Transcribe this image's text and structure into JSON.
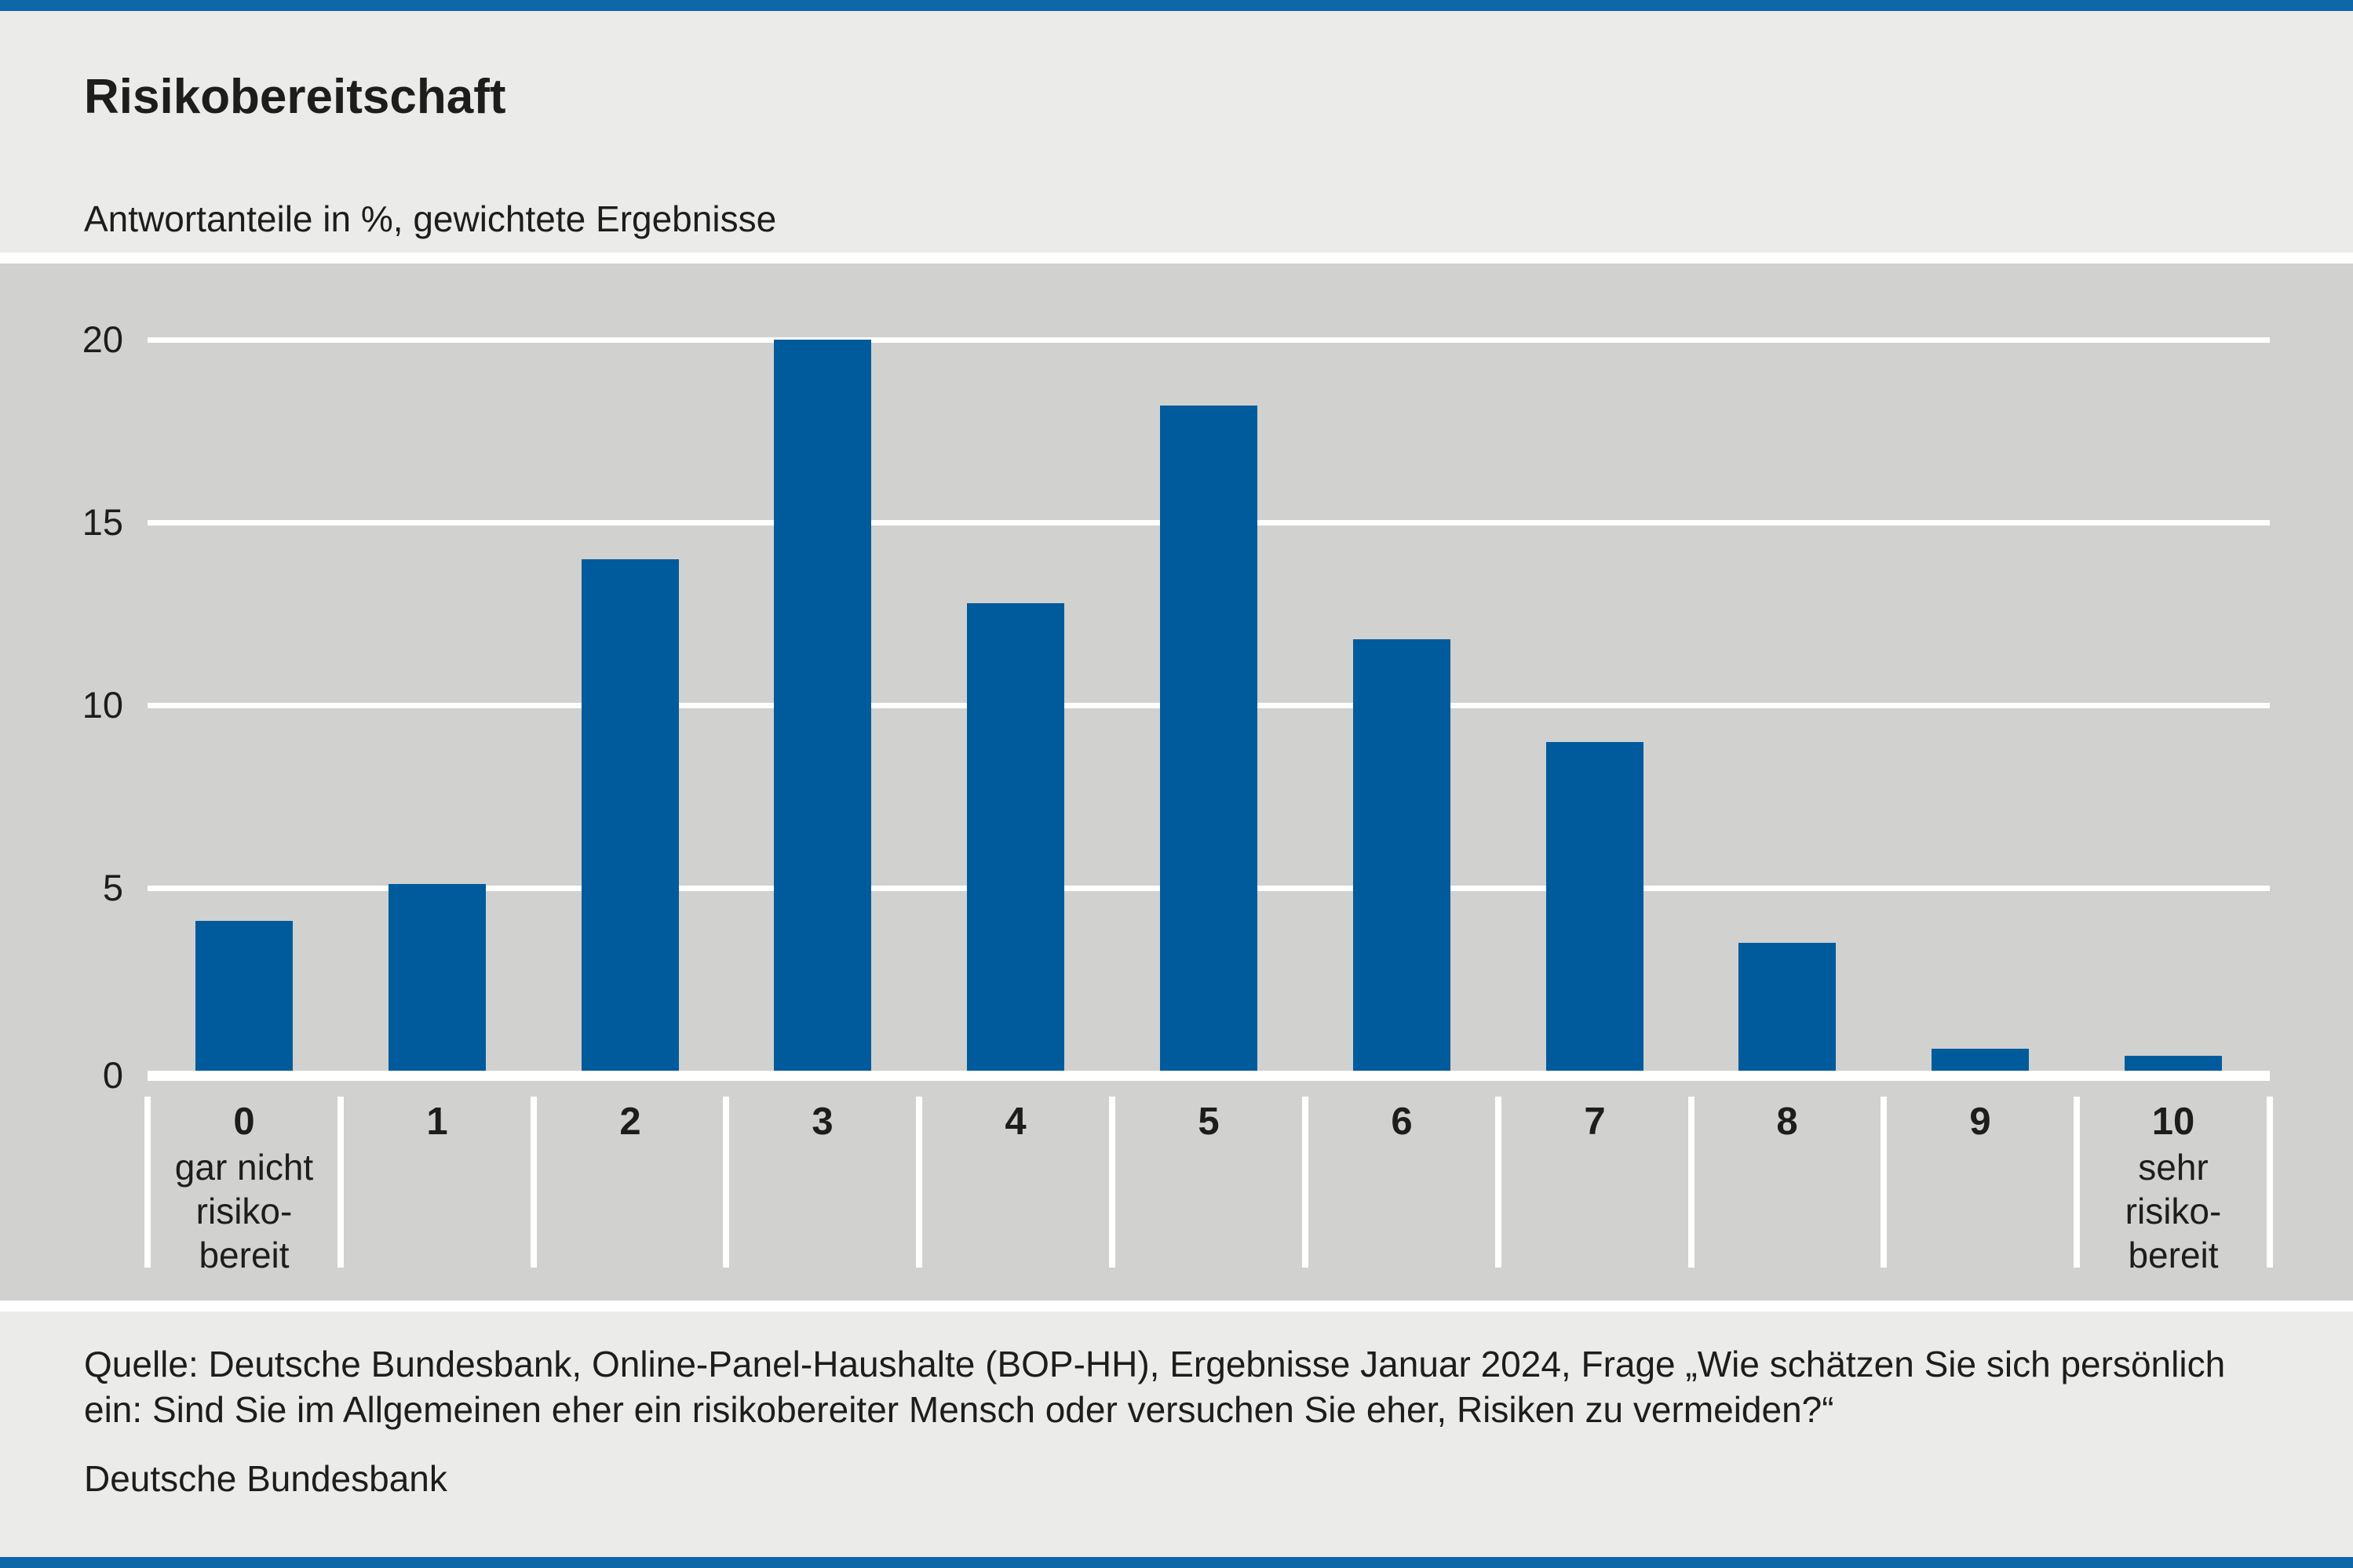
{
  "page": {
    "title": "Risikobereitschaft",
    "subtitle": "Antwortanteile in %, gewichtete Ergebnisse",
    "source_lines": [
      "Quelle: Deutsche Bundesbank, Online-Panel-Haushalte (BOP-HH), Ergebnisse Januar 2024, Frage „Wie schätzen Sie sich persönlich",
      "ein: Sind Sie im Allgemeinen eher ein risikobereiter Mensch oder versuchen Sie eher, Risiken zu vermeiden?“"
    ],
    "publisher": "Deutsche Bundesbank"
  },
  "colors": {
    "bar": "#005B9C",
    "accent_rule": "#0E67A9",
    "plot_background": "#D1D1CF",
    "page_background": "#EBEBEA",
    "grid": "#FFFFFF",
    "text": "#1D1D1B"
  },
  "chart_data": {
    "type": "bar",
    "title": "Risikobereitschaft",
    "subtitle": "Antwortanteile in %, gewichtete Ergebnisse",
    "unit": "percent",
    "categories": [
      "0",
      "1",
      "2",
      "3",
      "4",
      "5",
      "6",
      "7",
      "8",
      "9",
      "10"
    ],
    "category_sublabels": {
      "0": [
        "gar nicht",
        "risiko-",
        "bereit"
      ],
      "10": [
        "sehr",
        "risiko-",
        "bereit"
      ]
    },
    "values": [
      4.1,
      5.1,
      14.0,
      20.0,
      12.8,
      18.2,
      11.8,
      9.0,
      3.5,
      0.6,
      0.4
    ],
    "xlabel": "",
    "ylabel": "",
    "ylim": [
      0,
      20
    ],
    "yticks": [
      0,
      5,
      10,
      15,
      20
    ],
    "grid": "horizontal-white-lines",
    "legend": "none"
  }
}
